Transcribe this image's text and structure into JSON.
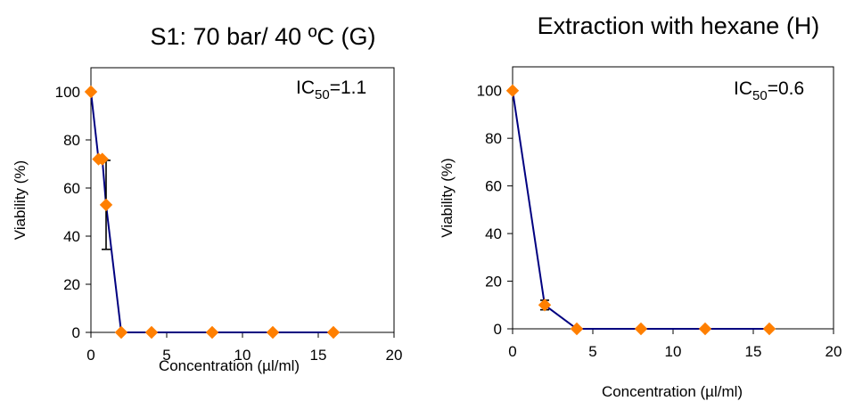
{
  "chart_data": [
    {
      "type": "line",
      "title": "S1: 70 bar/ 40 ºC (G)",
      "xlabel": "Concentration (µl/ml)",
      "ylabel": "Viability (%)",
      "xlim": [
        0,
        20
      ],
      "ylim": [
        0,
        110
      ],
      "xticks": [
        0,
        5,
        10,
        15,
        20
      ],
      "yticks": [
        0,
        20,
        40,
        60,
        80,
        100
      ],
      "grid": false,
      "annotation": {
        "prefix": "IC",
        "sub": "50",
        "suffix": "=1.1"
      },
      "series": [
        {
          "color": "#000080",
          "marker_color": "#ff7f00",
          "x": [
            0,
            0.5,
            0.75,
            1,
            2,
            4,
            8,
            12,
            16
          ],
          "y": [
            100,
            72,
            72,
            53,
            0,
            0,
            0,
            0,
            0
          ],
          "error": [
            0,
            0,
            0,
            18.5,
            0,
            0,
            0,
            0,
            0
          ]
        }
      ]
    },
    {
      "type": "line",
      "title": "Extraction with hexane (H)",
      "xlabel": "Concentration (µl/ml)",
      "ylabel": "Viability (%)",
      "xlim": [
        0,
        20
      ],
      "ylim": [
        0,
        110
      ],
      "xticks": [
        0,
        5,
        10,
        15,
        20
      ],
      "yticks": [
        0,
        20,
        40,
        60,
        80,
        100
      ],
      "grid": false,
      "annotation": {
        "prefix": "IC",
        "sub": "50",
        "suffix": "=0.6"
      },
      "series": [
        {
          "color": "#000080",
          "marker_color": "#ff7f00",
          "x": [
            0,
            2,
            4,
            8,
            12,
            16
          ],
          "y": [
            100,
            10,
            0,
            0,
            0,
            0
          ],
          "error": [
            0,
            2,
            0,
            0,
            0,
            0
          ]
        }
      ]
    }
  ]
}
